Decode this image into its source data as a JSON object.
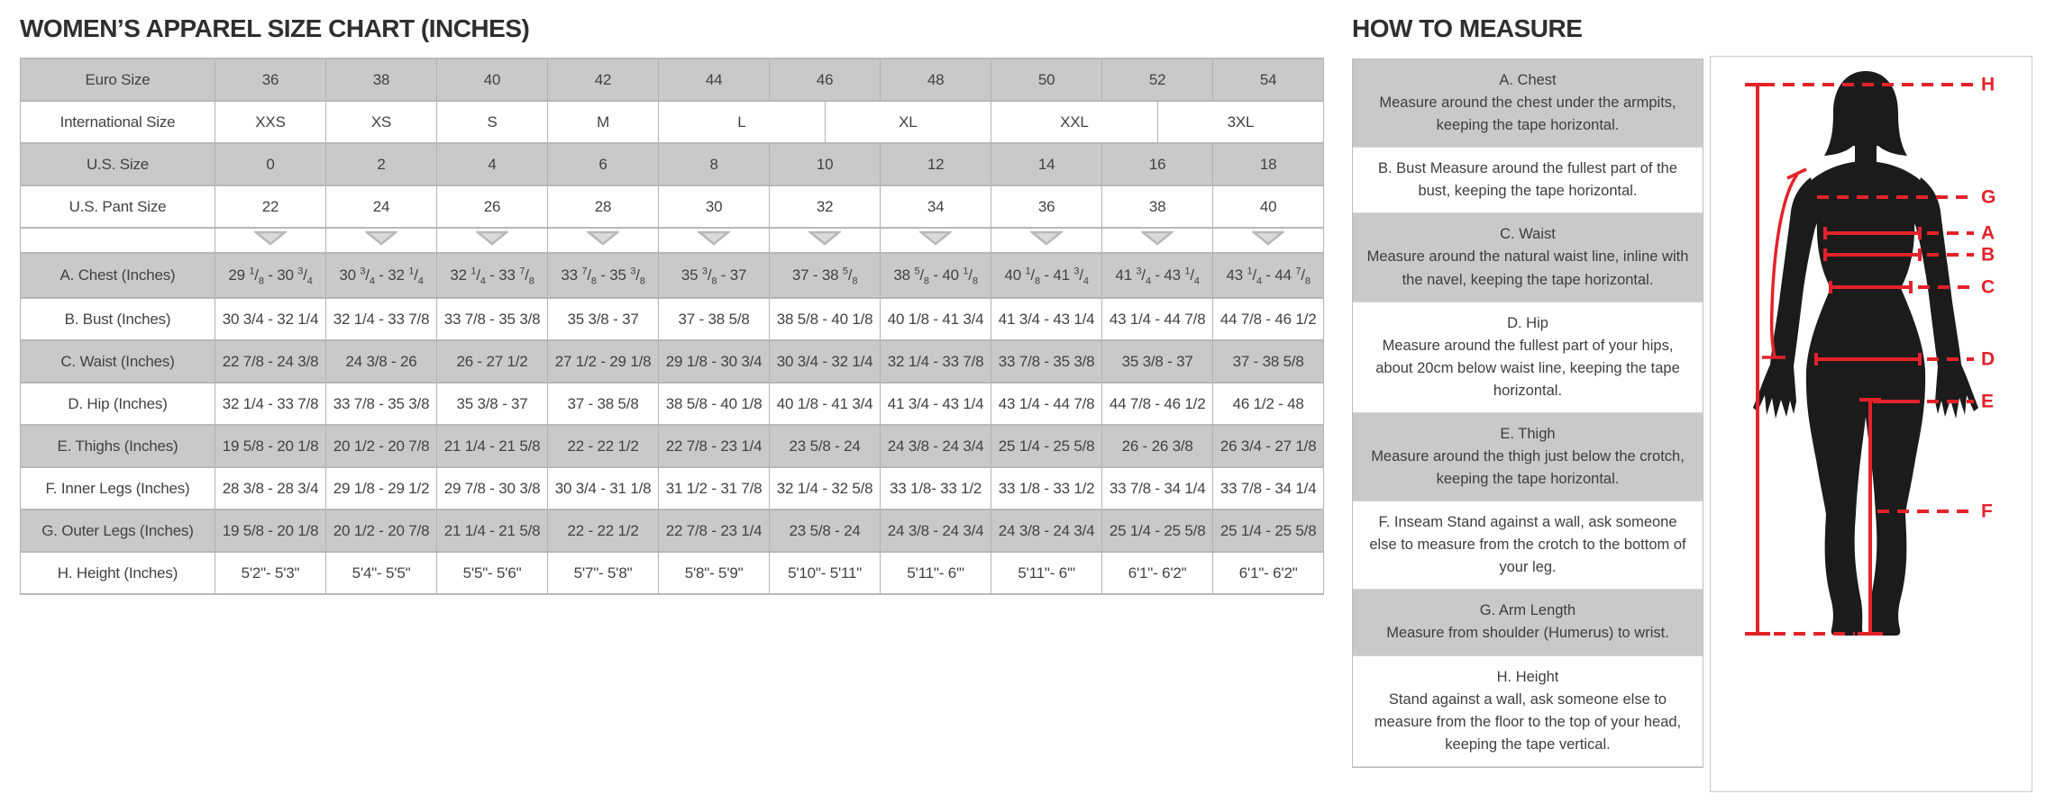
{
  "colors": {
    "accent_red": "#e4222a",
    "row_gray": "#c9c9c9",
    "text": "#424242"
  },
  "size_chart": {
    "title": "WOMEN’S APPAREL SIZE CHART (INCHES)",
    "rows": [
      {
        "label": "Euro Size",
        "shade": "gray",
        "values": [
          "36",
          "38",
          "40",
          "42",
          "44",
          "46",
          "48",
          "50",
          "52",
          "54"
        ]
      },
      {
        "label": "International Size",
        "shade": "white",
        "values": [
          "XXS",
          "XS",
          "S",
          "M",
          "L",
          "XL",
          "XXL",
          "3XL"
        ],
        "spans": [
          2,
          2,
          2,
          2,
          3,
          3,
          3,
          3
        ]
      },
      {
        "label": "U.S. Size",
        "shade": "gray",
        "values": [
          "0",
          "2",
          "4",
          "6",
          "8",
          "10",
          "12",
          "14",
          "16",
          "18"
        ]
      },
      {
        "label": "U.S. Pant Size",
        "shade": "white",
        "values": [
          "22",
          "24",
          "26",
          "28",
          "30",
          "32",
          "34",
          "36",
          "38",
          "40"
        ]
      },
      {
        "label": "",
        "shade": "white",
        "type": "arrows"
      },
      {
        "label": "A. Chest (Inches)",
        "shade": "gray",
        "frac": "superscript",
        "tall": true,
        "values": [
          "29 1/8 - 30 3/4",
          "30 3/4 - 32 1/4",
          "32 1/4 - 33 7/8",
          "33 7/8 - 35 3/8",
          "35 3/8 - 37",
          "37 - 38 5/8",
          "38 5/8 - 40 1/8",
          "40 1/8 - 41 3/4",
          "41 3/4 - 43 1/4",
          "43 1/4 - 44 7/8"
        ]
      },
      {
        "label": "B. Bust (Inches)",
        "shade": "white",
        "values": [
          "30 3/4 - 32 1/4",
          "32 1/4 - 33 7/8",
          "33 7/8 - 35 3/8",
          "35 3/8 - 37",
          "37 - 38 5/8",
          "38 5/8 - 40 1/8",
          "40 1/8 - 41 3/4",
          "41 3/4 - 43 1/4",
          "43 1/4 - 44 7/8",
          "44 7/8 - 46 1/2"
        ]
      },
      {
        "label": "C. Waist (Inches)",
        "shade": "gray",
        "values": [
          "22 7/8 - 24 3/8",
          "24 3/8 - 26",
          "26 - 27 1/2",
          "27 1/2 - 29 1/8",
          "29 1/8 - 30 3/4",
          "30 3/4 - 32 1/4",
          "32 1/4 - 33 7/8",
          "33 7/8 - 35 3/8",
          "35 3/8 - 37",
          "37 - 38 5/8"
        ]
      },
      {
        "label": "D. Hip (Inches)",
        "shade": "white",
        "values": [
          "32 1/4 - 33 7/8",
          "33 7/8 - 35 3/8",
          "35 3/8 - 37",
          "37 - 38 5/8",
          "38 5/8 - 40 1/8",
          "40 1/8 - 41 3/4",
          "41 3/4 - 43 1/4",
          "43 1/4 - 44 7/8",
          "44 7/8 - 46 1/2",
          "46 1/2 - 48"
        ]
      },
      {
        "label": "E. Thighs (Inches)",
        "shade": "gray",
        "values": [
          "19 5/8 - 20 1/8",
          "20 1/2 - 20 7/8",
          "21 1/4 - 21 5/8",
          "22 - 22 1/2",
          "22 7/8 - 23 1/4",
          "23 5/8 - 24",
          "24 3/8 - 24 3/4",
          "25 1/4 - 25 5/8",
          "26 - 26 3/8",
          "26 3/4 - 27 1/8"
        ]
      },
      {
        "label": "F. Inner Legs (Inches)",
        "shade": "white",
        "values": [
          "28 3/8 - 28 3/4",
          "29 1/8 - 29 1/2",
          "29 7/8 - 30 3/8",
          "30 3/4 - 31 1/8",
          "31 1/2 - 31 7/8",
          "32 1/4 - 32 5/8",
          "33 1/8- 33 1/2",
          "33 1/8 - 33 1/2",
          "33 7/8 - 34 1/4",
          "33 7/8 - 34 1/4"
        ]
      },
      {
        "label": "G. Outer Legs (Inches)",
        "shade": "gray",
        "values": [
          "19 5/8 - 20 1/8",
          "20 1/2 - 20 7/8",
          "21 1/4 - 21 5/8",
          "22 - 22 1/2",
          "22 7/8 - 23 1/4",
          "23 5/8 - 24",
          "24 3/8 - 24 3/4",
          "24 3/8 - 24 3/4",
          "25 1/4 - 25 5/8",
          "25 1/4 - 25 5/8"
        ]
      },
      {
        "label": "H. Height (Inches)",
        "shade": "white",
        "values": [
          "5'2\"- 5'3\"",
          "5'4\"- 5'5\"",
          "5'5\"- 5'6\"",
          "5'7\"- 5'8\"",
          "5'8\"- 5'9\"",
          "5'10\"- 5'11\"",
          "5'11\"- 6'\"",
          "5'11\"- 6'\"",
          "6'1\"- 6'2\"",
          "6'1\"- 6'2\""
        ]
      }
    ]
  },
  "how_to_measure": {
    "title": "HOW TO MEASURE",
    "items": [
      {
        "title": "A. Chest",
        "text": "Measure around the chest under the armpits, keeping the tape horizontal.",
        "shade": "gray"
      },
      {
        "title": "",
        "text": "B. Bust Measure around the fullest part of the bust, keeping the tape horizontal.",
        "shade": "white"
      },
      {
        "title": "C. Waist",
        "text": "Measure around the natural waist line, inline with the navel, keeping the tape horizontal.",
        "shade": "gray"
      },
      {
        "title": "D. Hip",
        "text": "Measure around the fullest part of your hips, about 20cm below waist line, keeping the tape horizontal.",
        "shade": "white"
      },
      {
        "title": "E. Thigh",
        "text": "Measure around the thigh just below the crotch, keeping the tape horizontal.",
        "shade": "gray"
      },
      {
        "title": "",
        "text": "F. Inseam Stand against a wall, ask someone else to measure from the crotch to the bottom of your leg.",
        "shade": "white"
      },
      {
        "title": "G. Arm Length",
        "text": "Measure from shoulder (Humerus) to wrist.",
        "shade": "gray"
      },
      {
        "title": "H. Height",
        "text": "Stand against a wall, ask someone else to measure from the floor to the top of your head, keeping the tape vertical.",
        "shade": "white"
      }
    ],
    "figure_labels": [
      "H",
      "G",
      "A",
      "B",
      "C",
      "D",
      "E",
      "F"
    ]
  }
}
